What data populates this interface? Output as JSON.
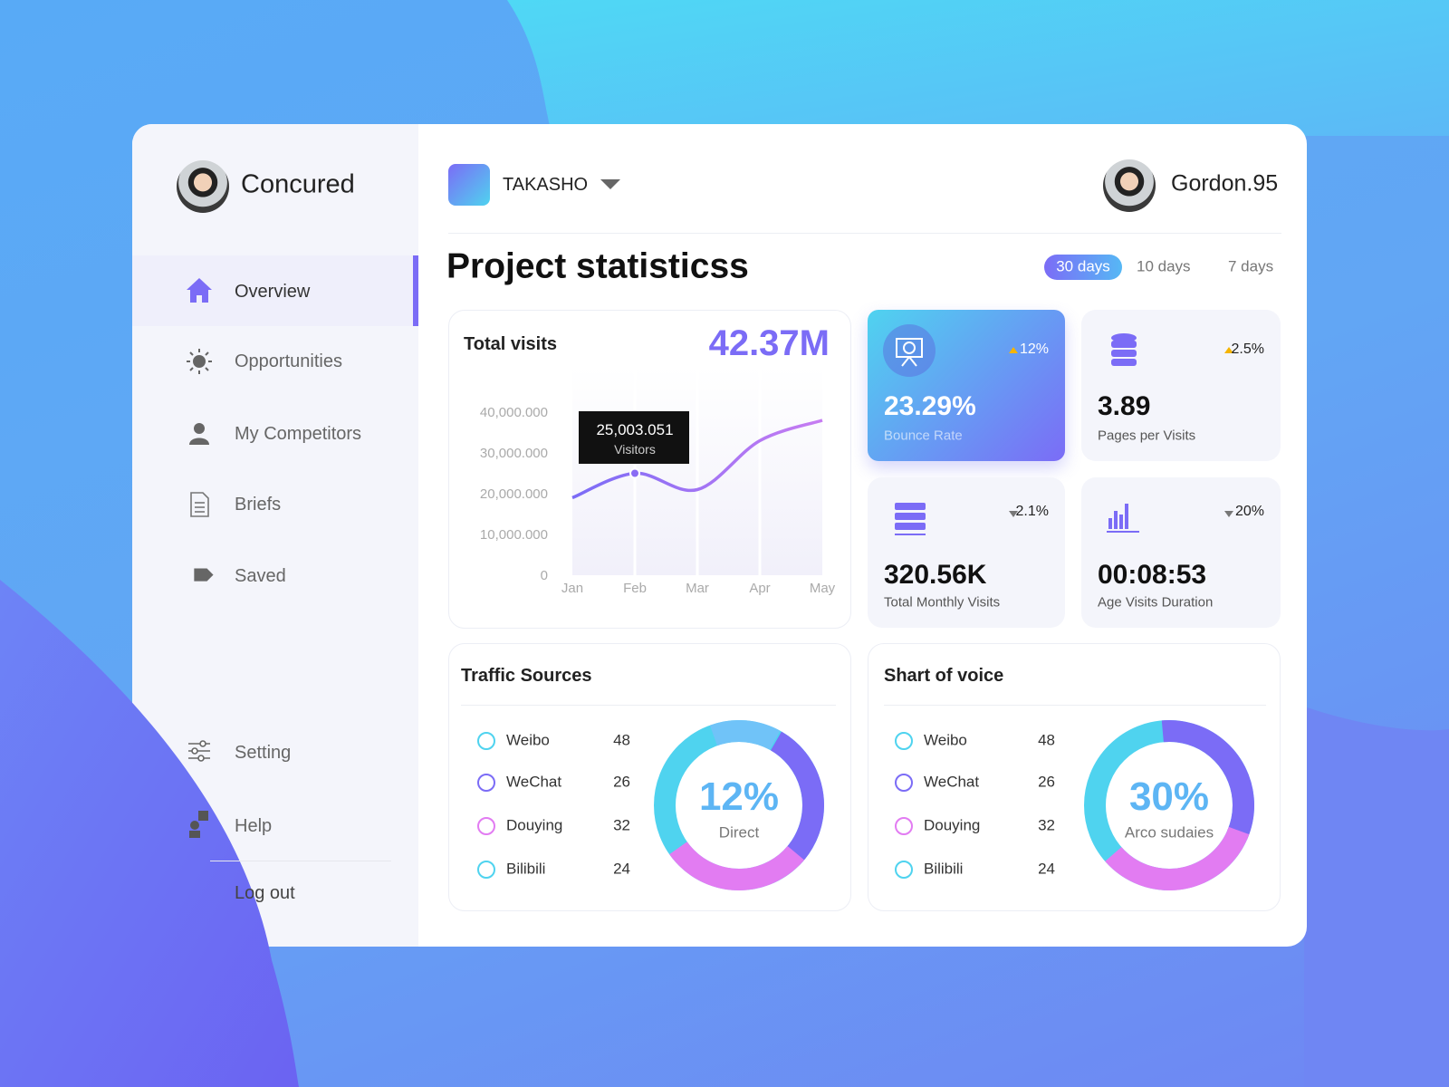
{
  "sidebar": {
    "brand": "Concured",
    "nav": [
      "Overview",
      "Opportunities",
      "My Competitors",
      "Briefs",
      "Saved"
    ],
    "footer_nav": [
      "Setting",
      "Help",
      "Log out"
    ]
  },
  "header": {
    "project": "TAKASHO",
    "user": "Gordon.95"
  },
  "page_title": "Project statisticss",
  "range_tabs": [
    "30 days",
    "10 days",
    "7 days"
  ],
  "total_visits": {
    "title": "Total visits",
    "total": "42.37M",
    "chart": {
      "type": "line",
      "categories": [
        "Jan",
        "Feb",
        "Mar",
        "Apr",
        "May"
      ],
      "series": [
        {
          "name": "Visitors",
          "color": "#8a6cf4",
          "values": [
            19000000,
            25003051,
            21000000,
            33000000,
            38000000
          ],
          "value_labels": [
            null,
            "25,003.051",
            null,
            null,
            null
          ]
        }
      ],
      "ylim": [
        0,
        50000000
      ],
      "yticks": [
        0,
        {
          "value": 10000000,
          "label": "10,000.000"
        },
        {
          "value": 20000000,
          "label": "20,000.000"
        },
        {
          "value": 30000000,
          "label": "30,000.000"
        },
        {
          "value": 40000000,
          "label": "40,000.000"
        }
      ]
    }
  },
  "stat_cards": [
    {
      "value": "23.29%",
      "label": "Bounce Rate",
      "change": "12%",
      "trend": "up"
    },
    {
      "value": "3.89",
      "label": "Pages per Visits",
      "change": "2.5%",
      "trend": "up"
    },
    {
      "value": "320.56K",
      "label": "Total Monthly Visits",
      "change": "2.1%",
      "trend": "down"
    },
    {
      "value": "00:08:53",
      "label": "Age Visits Duration",
      "change": "20%",
      "trend": "down"
    }
  ],
  "traffic_sources": {
    "title": "Traffic Sources",
    "center_value": "12%",
    "center_label": "Direct",
    "items": [
      {
        "name": "Weibo",
        "count": 48,
        "color": "#4fd3ef"
      },
      {
        "name": "WeChat",
        "count": 26,
        "color": "#7b6cf6"
      },
      {
        "name": "Douying",
        "count": 32,
        "color": "#e27cf2"
      },
      {
        "name": "Bilibili",
        "count": 24,
        "color": "#4fd3ef"
      }
    ]
  },
  "share_of_voice": {
    "title": "Shart of voice",
    "center_value": "30%",
    "center_label": "Arco sudaies",
    "items": [
      {
        "name": "Weibo",
        "count": 48,
        "color": "#4fd3ef"
      },
      {
        "name": "WeChat",
        "count": 26,
        "color": "#7b6cf6"
      },
      {
        "name": "Douying",
        "count": 32,
        "color": "#e27cf2"
      },
      {
        "name": "Bilibili",
        "count": 24,
        "color": "#4fd3ef"
      }
    ]
  }
}
